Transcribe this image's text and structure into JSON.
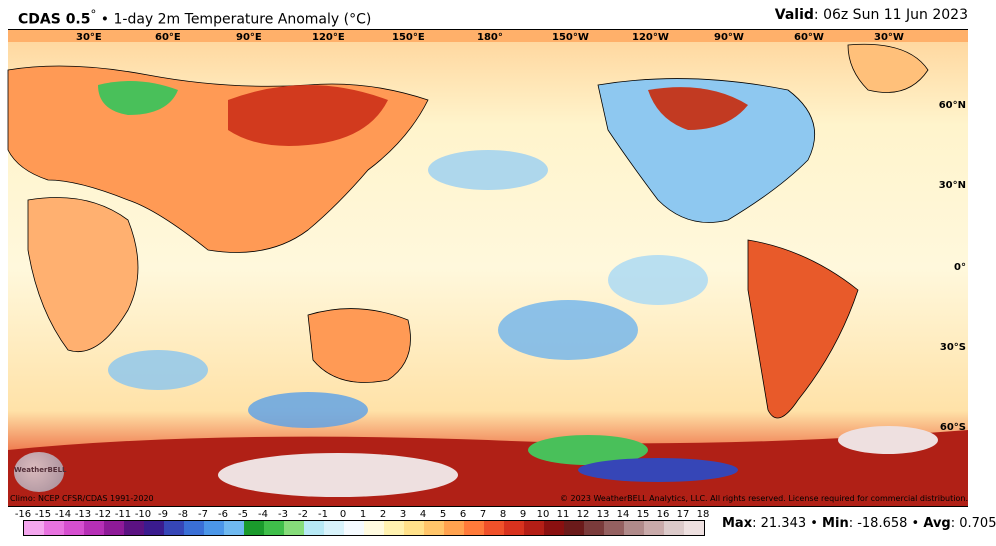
{
  "header": {
    "model": "CDAS 0.5",
    "degree": "°",
    "title": "• 1-day 2m Temperature Anomaly (°C)",
    "valid_label": "Valid",
    "valid_value": ": 06z Sun 11 Jun 2023"
  },
  "lon_labels": [
    "30°E",
    "60°E",
    "90°E",
    "120°E",
    "150°E",
    "180°",
    "150°W",
    "120°W",
    "90°W",
    "60°W",
    "30°W"
  ],
  "lat_labels": [
    "60°N",
    "30°N",
    "0°",
    "30°S",
    "60°S"
  ],
  "footer": {
    "climo": "Climo: NCEP CFSR/CDAS 1991-2020",
    "copyright": "© 2023 WeatherBELL Analytics, LLC. All rights reserved. License required for commercial distribution."
  },
  "logo_text": "WeatherBELL",
  "colorbar": {
    "ticks": [
      "-16",
      "-15",
      "-14",
      "-13",
      "-12",
      "-11",
      "-10",
      "-9",
      "-8",
      "-7",
      "-6",
      "-5",
      "-4",
      "-3",
      "-2",
      "-1",
      "0",
      "1",
      "2",
      "3",
      "4",
      "5",
      "6",
      "7",
      "8",
      "9",
      "10",
      "11",
      "12",
      "13",
      "14",
      "15",
      "16",
      "17",
      "18"
    ],
    "colors": [
      "#f4a6ee",
      "#e873e0",
      "#d64fd0",
      "#b62fb6",
      "#8e1a98",
      "#5b1282",
      "#3a1b8e",
      "#3646b7",
      "#3a6fd6",
      "#4b96e8",
      "#6fb9f0",
      "#1a9a2c",
      "#3fbe4a",
      "#86dc7a",
      "#b7e9f5",
      "#d8f3fb",
      "#f5fbff",
      "#fffbe0",
      "#fff2b0",
      "#ffe18a",
      "#ffc56a",
      "#ffa24f",
      "#ff7a3a",
      "#f0512a",
      "#d8321e",
      "#b41e16",
      "#8a1010",
      "#6b1a1a",
      "#7a3b3b",
      "#946060",
      "#b08a8a",
      "#c9aaaa",
      "#dccaca",
      "#eee0e0"
    ]
  },
  "stats": {
    "max_label": "Max",
    "max_value": ": 21.343",
    "min_label": "Min",
    "min_value": ": -18.658",
    "avg_label": "Avg",
    "avg_value": ": 0.705",
    "sep": " • "
  }
}
